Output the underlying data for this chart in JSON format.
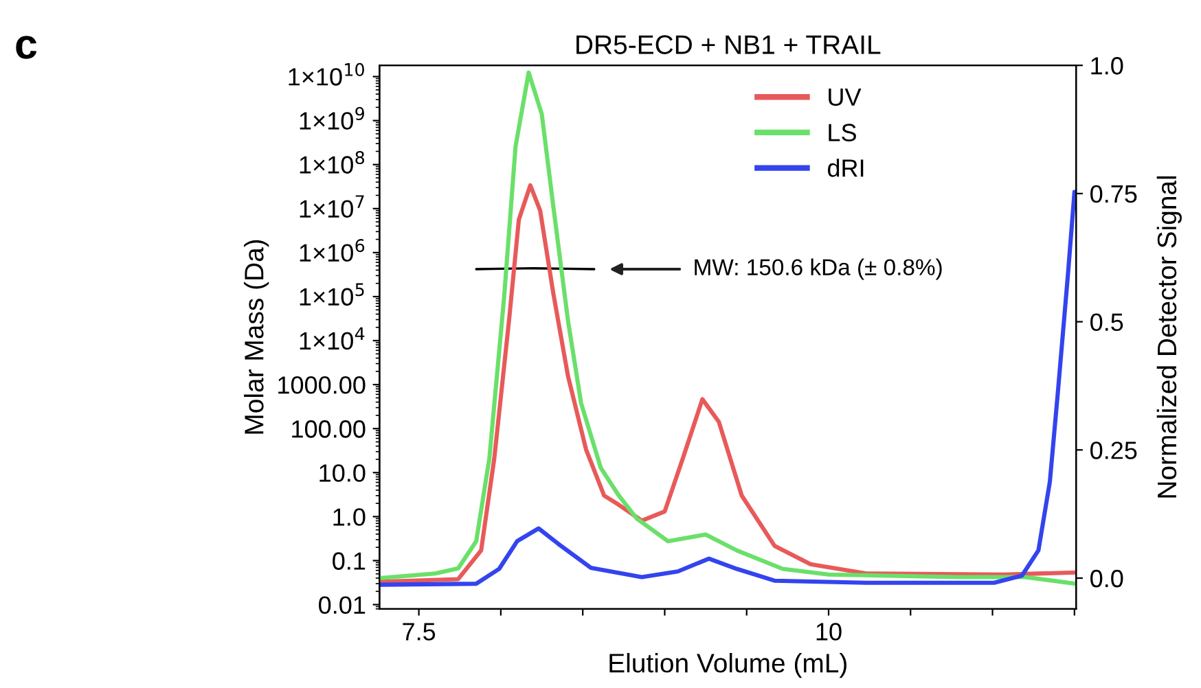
{
  "chart_data": {
    "type": "line",
    "title": "DR5-ECD + NB1 + TRAIL",
    "xlabel": "Elution Volume (mL)",
    "ylabel": "Molar Mass (Da)",
    "y2label": "Normalized Detector Signal",
    "annotations": [
      "c",
      "MW: 150.6 kDa (± 0.8%)"
    ],
    "log": "y",
    "legend": "top",
    "grid": false,
    "xlim": [
      7.26,
      11.51
    ],
    "xticks": [
      7.5,
      {
        "value": 8,
        "label": null
      },
      {
        "value": 8.5,
        "label": null
      },
      {
        "value": 9,
        "label": null
      },
      {
        "value": 9.5,
        "label": null
      },
      10,
      {
        "value": 10.5,
        "label": null
      },
      {
        "value": 11,
        "label": null
      },
      {
        "value": 11.5,
        "label": null
      }
    ],
    "ylim": [
      0.008,
      18000000000.0
    ],
    "yticks": [
      {
        "value": 10000000000.0,
        "label": "1×10$^{10}$"
      },
      {
        "value": 1000000000.0,
        "label": "1×10$^{9}$"
      },
      {
        "value": 100000000.0,
        "label": "1×10$^{8}$"
      },
      {
        "value": 10000000.0,
        "label": "1×10$^{7}$"
      },
      {
        "value": 1000000.0,
        "label": "1×10$^{6}$"
      },
      {
        "value": 100000.0,
        "label": "1×10$^{5}$"
      },
      {
        "value": 10000.0,
        "label": "1×10$^{4}$"
      },
      {
        "value": 1000,
        "label": "1000.00"
      },
      {
        "value": 100,
        "label": "100.00"
      },
      {
        "value": 10,
        "label": "10.0"
      },
      {
        "value": 1,
        "label": "1.0"
      },
      0.1,
      0.01
    ],
    "y2lim": [
      -0.06,
      1.0
    ],
    "y2ticks": [
      {
        "value": 0,
        "label": "0.0"
      },
      0.25,
      {
        "value": 0.5,
        "label": "0.5"
      },
      0.75,
      {
        "value": 1,
        "label": "1.0"
      }
    ],
    "series": [
      {
        "name": "UV",
        "color": "#e85a5a",
        "axis": "y2",
        "x": [
          7.26,
          7.74,
          7.88,
          7.96,
          8.05,
          8.11,
          8.18,
          8.24,
          8.32,
          8.41,
          8.52,
          8.63,
          8.72,
          8.86,
          9.0,
          9.11,
          9.23,
          9.33,
          9.47,
          9.67,
          9.89,
          10.23,
          11.07,
          11.51
        ],
        "values": [
          -0.007,
          -0.002,
          0.054,
          0.233,
          0.502,
          0.699,
          0.766,
          0.717,
          0.556,
          0.394,
          0.251,
          0.161,
          0.143,
          0.112,
          0.13,
          0.233,
          0.349,
          0.305,
          0.161,
          0.063,
          0.027,
          0.009,
          0.007,
          0.011
        ]
      },
      {
        "name": "LS",
        "color": "#6ae06a",
        "axis": "y2",
        "x": [
          7.26,
          7.6,
          7.74,
          7.85,
          7.93,
          8.02,
          8.09,
          8.17,
          8.25,
          8.32,
          8.41,
          8.49,
          8.61,
          8.72,
          8.83,
          9.02,
          9.25,
          9.44,
          9.72,
          10.0,
          10.79,
          11.2,
          11.51
        ],
        "values": [
          0.0,
          0.009,
          0.019,
          0.072,
          0.233,
          0.547,
          0.842,
          0.986,
          0.905,
          0.726,
          0.502,
          0.341,
          0.215,
          0.161,
          0.116,
          0.072,
          0.085,
          0.054,
          0.018,
          0.007,
          0.002,
          0.002,
          -0.011
        ]
      },
      {
        "name": "dRI",
        "color": "#3344ee",
        "axis": "y2",
        "x": [
          7.26,
          7.85,
          7.99,
          8.1,
          8.23,
          8.35,
          8.55,
          8.86,
          9.08,
          9.27,
          9.44,
          9.67,
          10.23,
          11.01,
          11.18,
          11.28,
          11.35,
          11.4,
          11.46,
          11.5
        ],
        "values": [
          -0.013,
          -0.011,
          0.018,
          0.072,
          0.097,
          0.067,
          0.02,
          0.002,
          0.013,
          0.038,
          0.018,
          -0.005,
          -0.009,
          -0.009,
          0.005,
          0.054,
          0.188,
          0.367,
          0.591,
          0.753
        ]
      },
      {
        "color": "#000000",
        "axis": "y",
        "x": [
          7.85,
          8.0,
          8.2,
          8.4,
          8.57
        ],
        "values": [
          420000,
          430000,
          440000,
          430000,
          420000
        ]
      }
    ]
  }
}
